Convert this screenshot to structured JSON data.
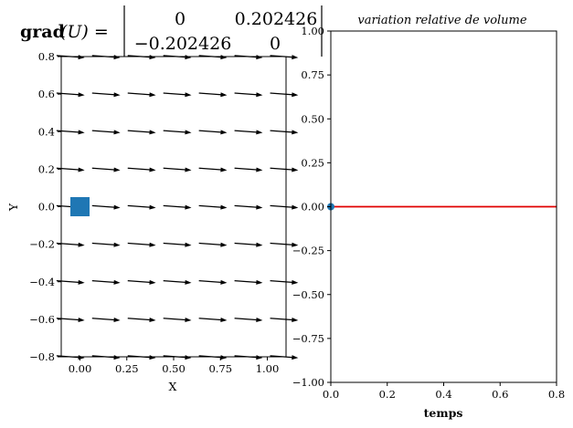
{
  "header": {
    "grad_label": "grad",
    "grad_arg": "(U) =",
    "matrix": [
      [
        "0",
        "0.202426"
      ],
      [
        "−0.202426",
        "0"
      ]
    ]
  },
  "chart_data": [
    {
      "type": "quiver",
      "xlabel": "X",
      "ylabel": "Y",
      "xlim": [
        -0.1,
        1.1
      ],
      "ylim": [
        -0.8,
        0.8
      ],
      "xticks": [
        "0.00",
        "0.25",
        "0.50",
        "0.75",
        "1.00"
      ],
      "yticks": [
        "−0.8",
        "−0.6",
        "−0.4",
        "−0.2",
        "0.0",
        "0.2",
        "0.4",
        "0.6",
        "0.8"
      ],
      "grad_U": [
        [
          0,
          0.202426
        ],
        [
          -0.202426,
          0
        ]
      ],
      "arrow_color": "#000000",
      "marker": {
        "shape": "square",
        "x": 0.0,
        "y": 0.0,
        "color": "#1f77b4"
      }
    },
    {
      "type": "line",
      "title": "variation relative de volume",
      "xlabel": "temps",
      "ylabel": "",
      "xlim": [
        0,
        0.8
      ],
      "ylim": [
        -1.0,
        1.0
      ],
      "xticks": [
        "0.0",
        "0.2",
        "0.4",
        "0.6",
        "0.8"
      ],
      "yticks": [
        "−1.00",
        "−0.75",
        "−0.50",
        "−0.25",
        "0.00",
        "0.25",
        "0.50",
        "0.75",
        "1.00"
      ],
      "series": [
        {
          "x": [
            0,
            0.8
          ],
          "y": [
            0,
            0
          ],
          "color": "#e00000"
        }
      ],
      "point": {
        "x": 0,
        "y": 0,
        "color": "#1f77b4"
      }
    }
  ]
}
